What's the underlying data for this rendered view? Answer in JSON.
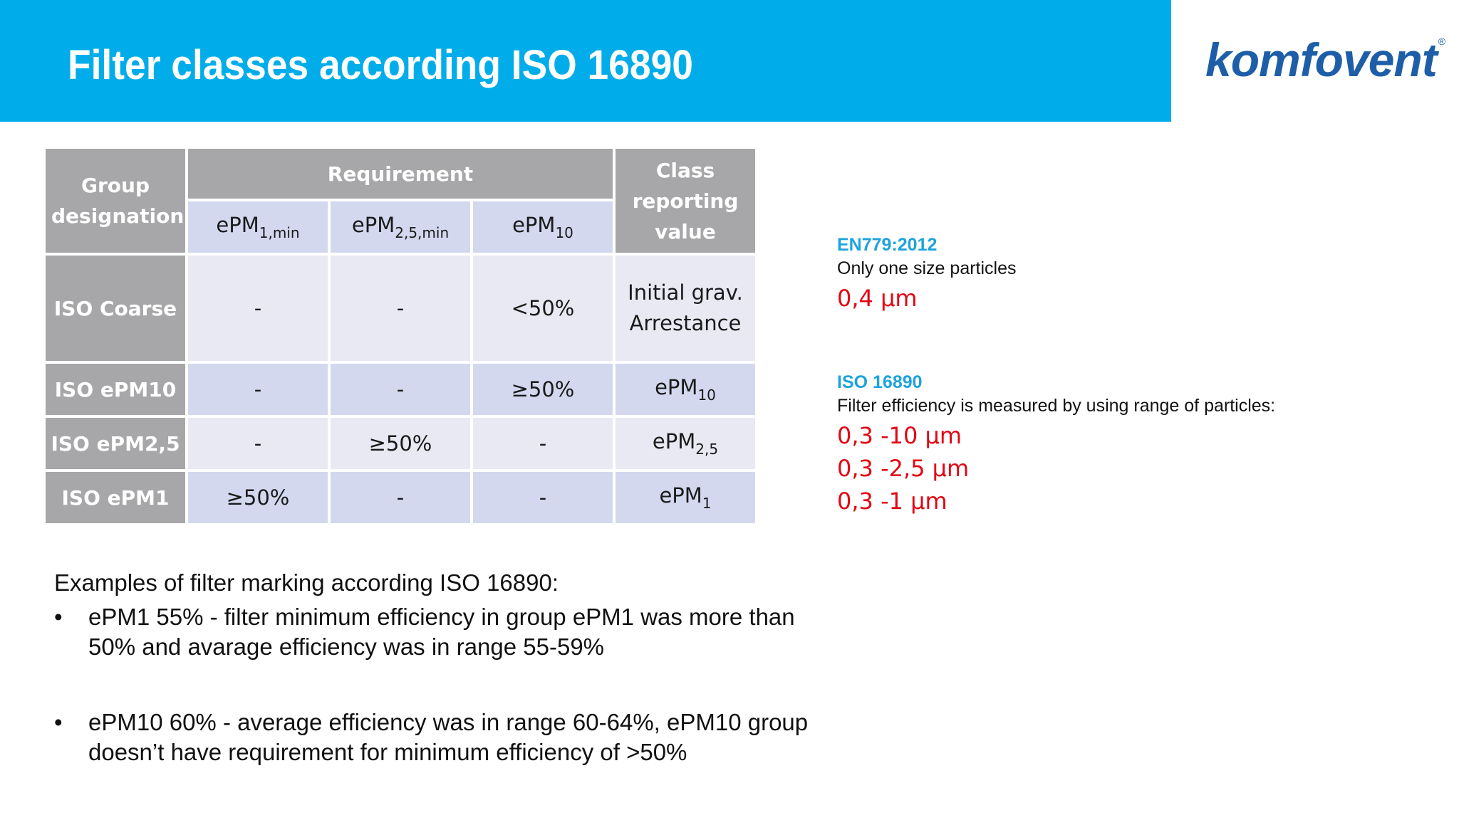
{
  "header": {
    "title": "Filter classes according ISO 16890",
    "logo_text": "komfovent",
    "logo_reg": "®",
    "bar_color": "#00adea",
    "logo_color": "#1e5ea8"
  },
  "table": {
    "col_group": "Group designation",
    "col_requirement": "Requirement",
    "col_class": "Class reporting value",
    "sub_cols": [
      {
        "base": "ePM",
        "sub": "1,min"
      },
      {
        "base": "ePM",
        "sub": "2,5,min"
      },
      {
        "base": "ePM",
        "sub": "10"
      }
    ],
    "rows": [
      {
        "group": "ISO Coarse",
        "c1": "-",
        "c2": "-",
        "c3": "<50%",
        "class_line1": "Initial grav.",
        "class_line2": "Arrestance"
      },
      {
        "group": "ISO ePM10",
        "c1": "-",
        "c2": "-",
        "c3": "≥50%",
        "class_base": "ePM",
        "class_sub": "10"
      },
      {
        "group": "ISO ePM2,5",
        "c1": "-",
        "c2": "≥50%",
        "c3": "-",
        "class_base": "ePM",
        "class_sub": "2,5"
      },
      {
        "group": "ISO ePM1",
        "c1": "≥50%",
        "c2": "-",
        "c3": "-",
        "class_base": "ePM",
        "class_sub": "1"
      }
    ]
  },
  "en779": {
    "heading": "EN779:2012",
    "text": "Only one size particles",
    "values": [
      "0,4 µm"
    ]
  },
  "iso16890": {
    "heading": "ISO 16890",
    "text": "Filter efficiency is measured by using range of particles:",
    "values": [
      "0,3 -10 µm",
      "0,3 -2,5 µm",
      "0,3 -1 µm"
    ]
  },
  "examples": {
    "title": "Examples of filter marking according ISO 16890:",
    "bullet_char": "•",
    "items": [
      {
        "line1": "ePM1 55% - filter minimum efficiency in group ePM1 was  more than",
        "line2": "50% and avarage efficiency was in range 55-59%"
      },
      {
        "line1": "ePM10 60% - average efficiency was in range 60-64%, ePM10 group",
        "line2": "doesn’t have requirement for minimum efficiency of >50%"
      }
    ]
  }
}
